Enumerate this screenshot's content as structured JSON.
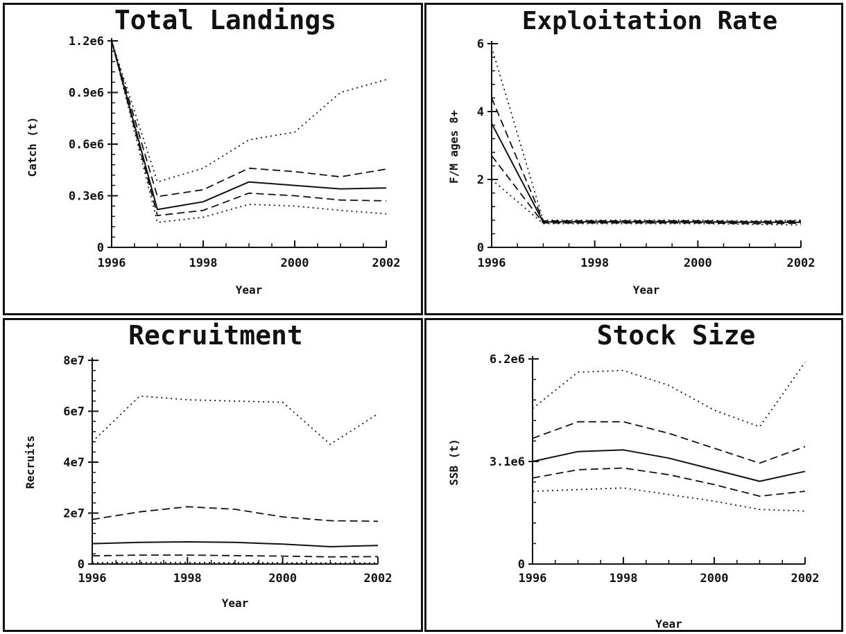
{
  "chart_data": [
    {
      "type": "line",
      "title": "Total Landings",
      "xlabel": "Year",
      "ylabel": "Catch (t)",
      "xlim": [
        1996,
        2002
      ],
      "ylim": [
        0,
        1200000
      ],
      "xticks": [
        1996,
        1998,
        2000,
        2002
      ],
      "xtick_labels": [
        "1996",
        "1998",
        "2000",
        "2002"
      ],
      "yticks": [
        0,
        300000,
        600000,
        900000,
        1200000
      ],
      "ytick_labels": [
        "0",
        "0.3e6",
        "0.6e6",
        "0.9e6",
        "1.2e6"
      ],
      "x": [
        1996,
        1997,
        1998,
        1999,
        2000,
        2001,
        2002
      ],
      "series": [
        {
          "style": "dotted",
          "values": [
            1200000,
            380000,
            460000,
            625000,
            670000,
            900000,
            975000
          ]
        },
        {
          "style": "dashed",
          "values": [
            1200000,
            295000,
            335000,
            460000,
            440000,
            410000,
            455000
          ]
        },
        {
          "style": "solid",
          "values": [
            1200000,
            220000,
            265000,
            380000,
            360000,
            340000,
            345000
          ]
        },
        {
          "style": "dashed",
          "values": [
            1200000,
            185000,
            215000,
            315000,
            300000,
            275000,
            270000
          ]
        },
        {
          "style": "dotted",
          "values": [
            1200000,
            145000,
            175000,
            250000,
            240000,
            215000,
            195000
          ]
        }
      ]
    },
    {
      "type": "line",
      "title": "Exploitation Rate",
      "xlabel": "Year",
      "ylabel": "F/M ages 8+",
      "xlim": [
        1996,
        2002
      ],
      "ylim": [
        0,
        6
      ],
      "xticks": [
        1996,
        1998,
        2000,
        2002
      ],
      "xtick_labels": [
        "1996",
        "1998",
        "2000",
        "2002"
      ],
      "yticks": [
        0,
        2,
        4,
        6
      ],
      "ytick_labels": [
        "0",
        "2",
        "4",
        "6"
      ],
      "x": [
        1996,
        1997,
        1998,
        1999,
        2000,
        2001,
        2002
      ],
      "series": [
        {
          "style": "dotted",
          "values": [
            5.9,
            0.8,
            0.8,
            0.8,
            0.8,
            0.78,
            0.8
          ]
        },
        {
          "style": "dashed",
          "values": [
            4.4,
            0.78,
            0.78,
            0.78,
            0.78,
            0.76,
            0.78
          ]
        },
        {
          "style": "solid",
          "values": [
            3.65,
            0.75,
            0.75,
            0.75,
            0.75,
            0.74,
            0.74
          ]
        },
        {
          "style": "dashed",
          "values": [
            2.7,
            0.72,
            0.72,
            0.72,
            0.72,
            0.7,
            0.71
          ]
        },
        {
          "style": "dotted",
          "values": [
            2.0,
            0.7,
            0.7,
            0.7,
            0.7,
            0.68,
            0.66
          ]
        }
      ]
    },
    {
      "type": "line",
      "title": "Recruitment",
      "xlabel": "Year",
      "ylabel": "Recruits",
      "xlim": [
        1996,
        2002
      ],
      "ylim": [
        0,
        80000000
      ],
      "xticks": [
        1996,
        1998,
        2000,
        2002
      ],
      "xtick_labels": [
        "1996",
        "1998",
        "2000",
        "2002"
      ],
      "yticks": [
        0,
        20000000,
        40000000,
        60000000,
        80000000
      ],
      "ytick_labels": [
        "0",
        "2e7",
        "4e7",
        "6e7",
        "8e7"
      ],
      "x": [
        1996,
        1997,
        1998,
        1999,
        2000,
        2001,
        2002
      ],
      "series": [
        {
          "style": "dotted",
          "values": [
            48000000,
            66000000,
            64500000,
            64000000,
            63500000,
            47000000,
            59000000
          ]
        },
        {
          "style": "dashed",
          "values": [
            17500000,
            20500000,
            22500000,
            21500000,
            18500000,
            17000000,
            16800000
          ]
        },
        {
          "style": "solid",
          "values": [
            8000000,
            8500000,
            8700000,
            8500000,
            7800000,
            6800000,
            7300000
          ]
        },
        {
          "style": "dashed",
          "values": [
            3200000,
            3500000,
            3500000,
            3300000,
            3100000,
            2800000,
            2900000
          ]
        },
        {
          "style": "dotted",
          "values": [
            500000,
            600000,
            600000,
            500000,
            500000,
            400000,
            400000
          ]
        }
      ]
    },
    {
      "type": "line",
      "title": "Stock Size",
      "xlabel": "Year",
      "ylabel": "SSB (t)",
      "xlim": [
        1996,
        2002
      ],
      "ylim": [
        0,
        6200000
      ],
      "xticks": [
        1996,
        1998,
        2000,
        2002
      ],
      "xtick_labels": [
        "1996",
        "1998",
        "2000",
        "2002"
      ],
      "yticks": [
        0,
        3100000,
        6200000
      ],
      "ytick_labels": [
        "0",
        "3.1e6",
        "6.2e6"
      ],
      "x": [
        1996,
        1997,
        1998,
        1999,
        2000,
        2001,
        2002
      ],
      "series": [
        {
          "style": "dotted",
          "values": [
            4700000,
            5800000,
            5850000,
            5400000,
            4650000,
            4150000,
            6100000
          ]
        },
        {
          "style": "dashed",
          "values": [
            3800000,
            4300000,
            4300000,
            3950000,
            3500000,
            3050000,
            3550000
          ]
        },
        {
          "style": "solid",
          "values": [
            3100000,
            3400000,
            3450000,
            3200000,
            2850000,
            2500000,
            2800000
          ]
        },
        {
          "style": "dashed",
          "values": [
            2600000,
            2850000,
            2900000,
            2700000,
            2400000,
            2050000,
            2200000
          ]
        },
        {
          "style": "dotted",
          "values": [
            2200000,
            2250000,
            2300000,
            2100000,
            1900000,
            1650000,
            1600000
          ]
        }
      ]
    }
  ]
}
